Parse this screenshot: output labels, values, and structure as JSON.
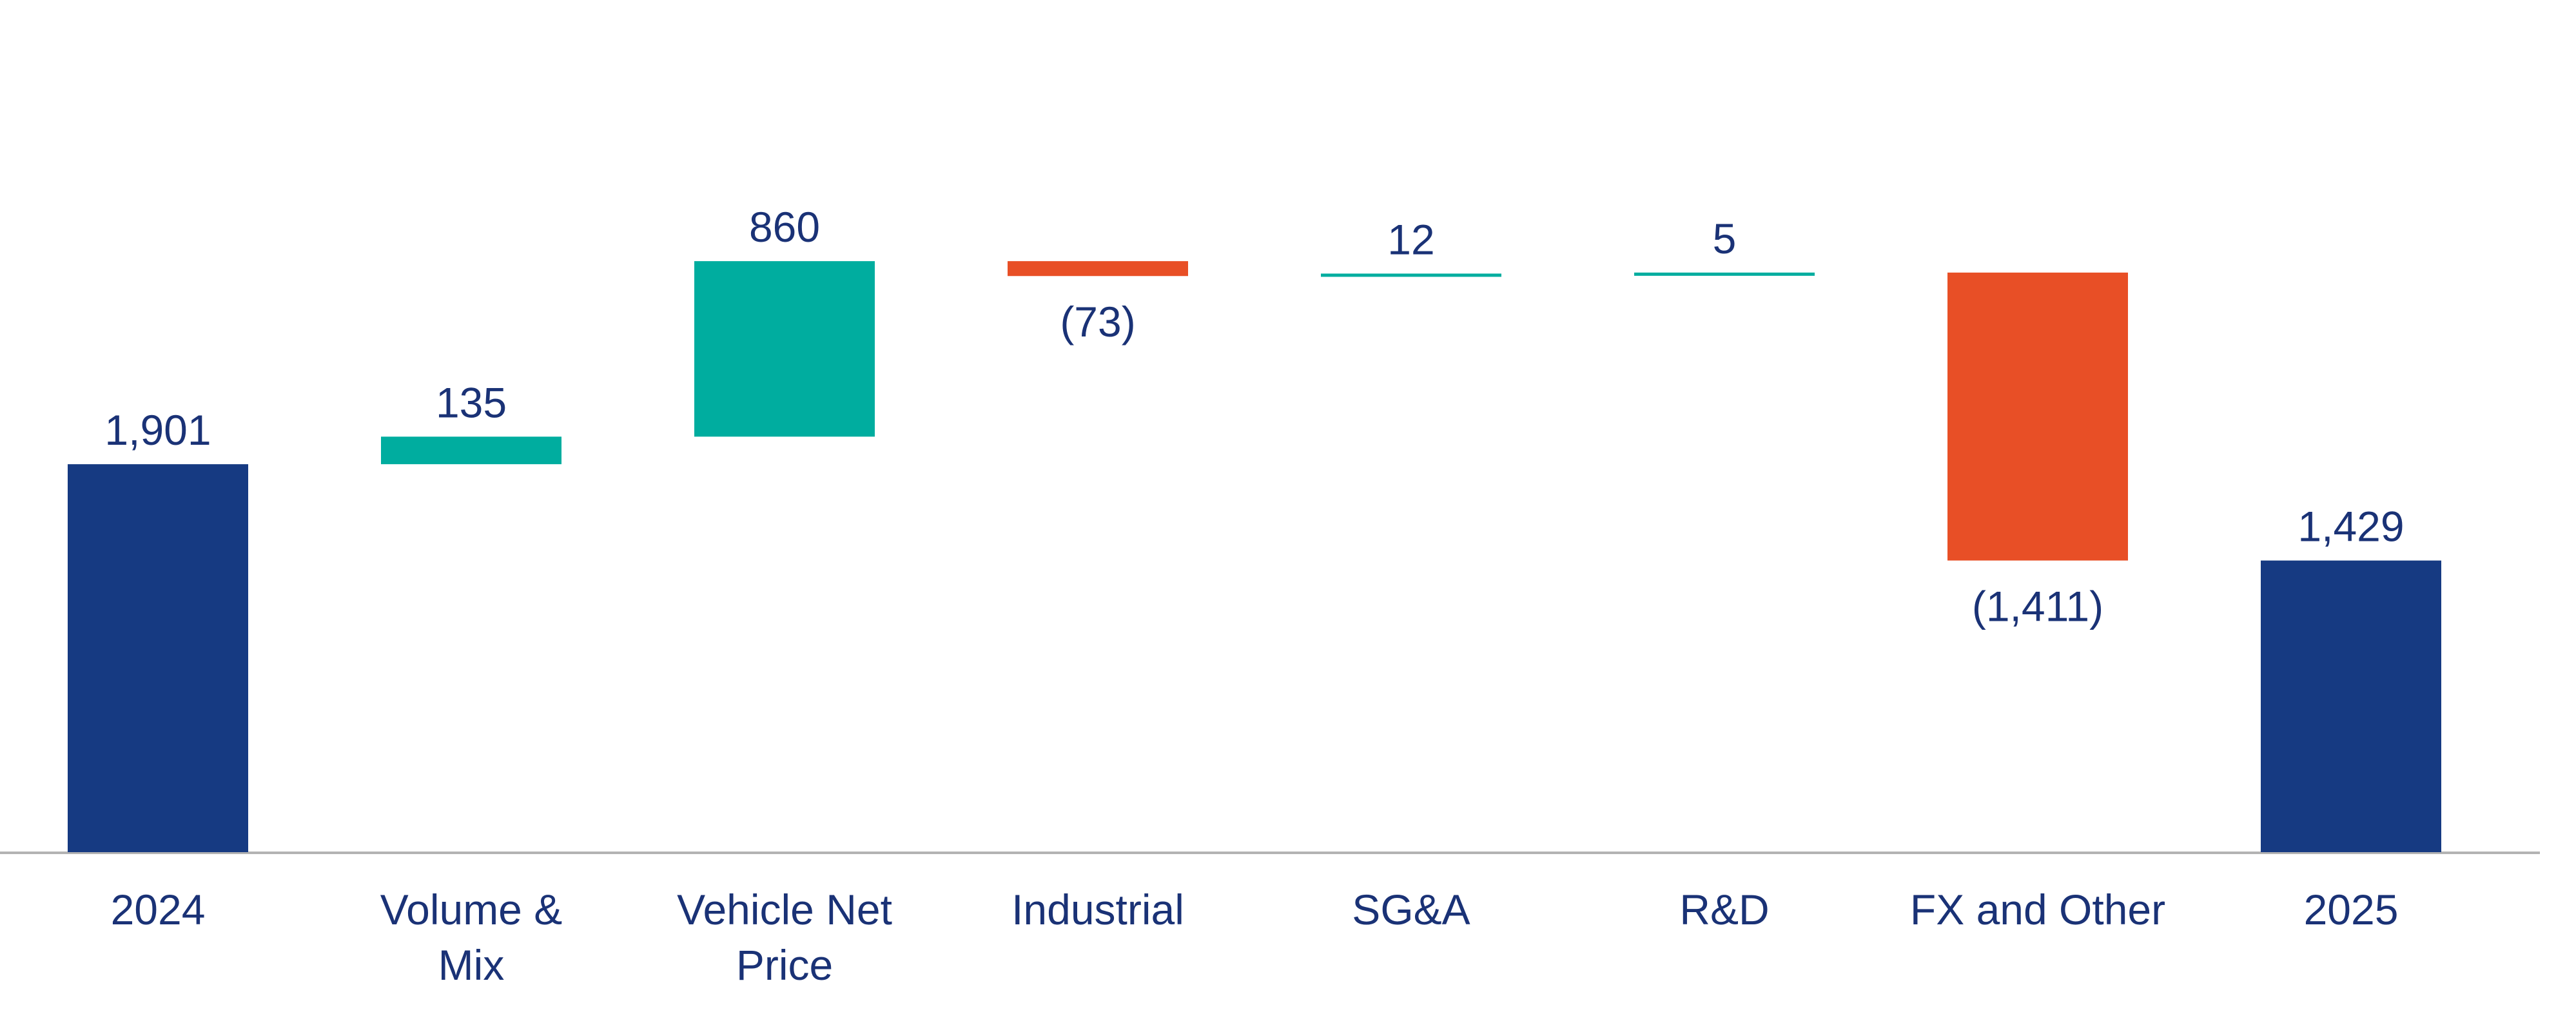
{
  "chart_data": {
    "type": "waterfall",
    "title": "",
    "xlabel": "",
    "ylabel": "",
    "categories": [
      [
        "2024"
      ],
      [
        "Volume &",
        "Mix"
      ],
      [
        "Vehicle Net",
        "Price"
      ],
      [
        "Industrial"
      ],
      [
        "SG&A"
      ],
      [
        "R&D"
      ],
      [
        "FX and Other"
      ],
      [
        "2025"
      ]
    ],
    "steps": [
      {
        "kind": "total",
        "value": 1901,
        "label": "1,901"
      },
      {
        "kind": "delta",
        "value": 135,
        "label": "135"
      },
      {
        "kind": "delta",
        "value": 860,
        "label": "860"
      },
      {
        "kind": "delta",
        "value": -73,
        "label": "(73)"
      },
      {
        "kind": "delta",
        "value": 12,
        "label": "12"
      },
      {
        "kind": "delta",
        "value": 5,
        "label": "5"
      },
      {
        "kind": "delta",
        "value": -1411,
        "label": "(1,411)"
      },
      {
        "kind": "total",
        "value": 1429,
        "label": "1,429"
      }
    ],
    "ylim": [
      0,
      3100
    ],
    "grid": false,
    "legend": "none",
    "colors": {
      "total": "#163a82",
      "increase": "#00ad9f",
      "decrease": "#e84f26",
      "text": "#1a3276",
      "axis": "#b3b3b3"
    }
  }
}
